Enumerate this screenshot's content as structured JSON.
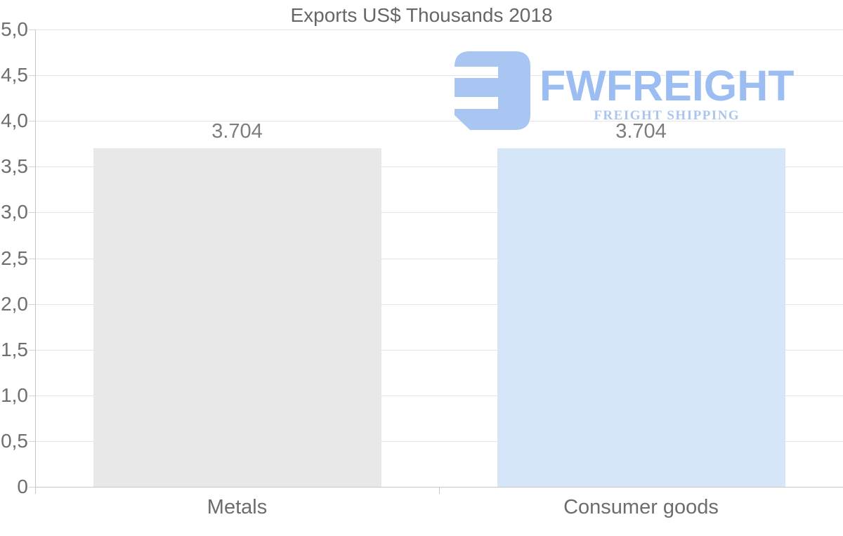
{
  "chart_data": {
    "type": "bar",
    "title": "Exports US$ Thousands 2018",
    "categories": [
      "Metals",
      "Consumer goods"
    ],
    "values": [
      3704,
      3704
    ],
    "axis_values": [
      3.704,
      3.704
    ],
    "value_labels": [
      "3.704",
      "3.704"
    ],
    "xlabel": "",
    "ylabel": "",
    "ylim": [
      0,
      5
    ],
    "ytick_step": 0.5,
    "ytick_labels": [
      "5,0",
      "4,5",
      "4,0",
      "3,5",
      "3,0",
      "2,5",
      "2,0",
      "1,5",
      "1,0",
      "0,5",
      "0"
    ],
    "grid": true,
    "legend": "none",
    "bar_colors": [
      "#e8e8e8",
      "#d5e6f8"
    ],
    "gridline_color": "#e4e4e4",
    "axis_color": "#c7c7c7",
    "text_color": "#6c6c6c"
  },
  "watermark": {
    "brand": "FWFREIGHT",
    "tagline": "FREIGHT SHIPPING",
    "mark_icon": "fwfreight-logo-mark",
    "mark_color": "#a9c5f1",
    "brand_color": "#9cbdf2",
    "tagline_color": "#abc5ef"
  }
}
